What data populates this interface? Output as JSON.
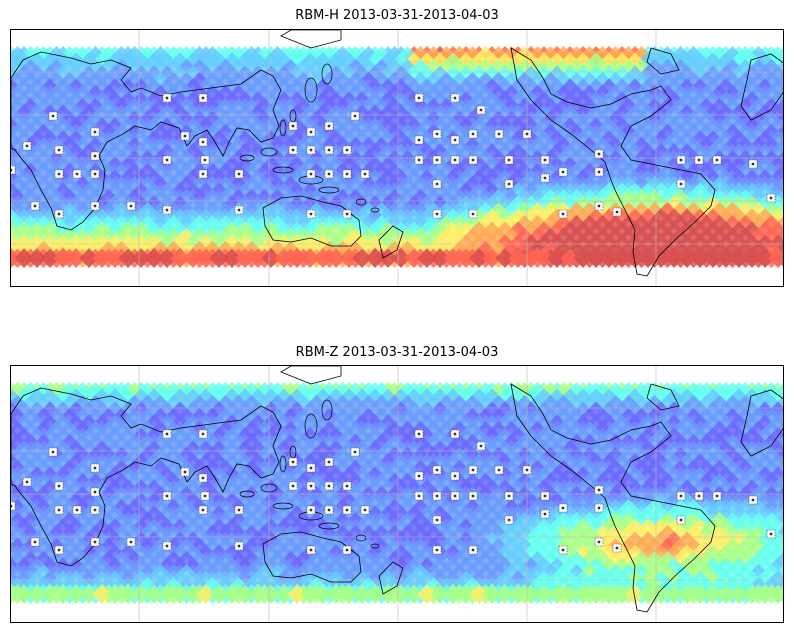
{
  "panels": [
    {
      "title": "RBM-H 2013-03-31-2013-04-03",
      "variant": "H"
    },
    {
      "title": "RBM-Z 2013-03-31-2013-04-03",
      "variant": "Z"
    }
  ],
  "colormap": [
    "#6a6aff",
    "#6a9cff",
    "#66ccff",
    "#66ffee",
    "#aaff88",
    "#ffee66",
    "#ffaa55",
    "#ff6655",
    "#d85050"
  ],
  "station_icon": "station-marker-icon"
}
